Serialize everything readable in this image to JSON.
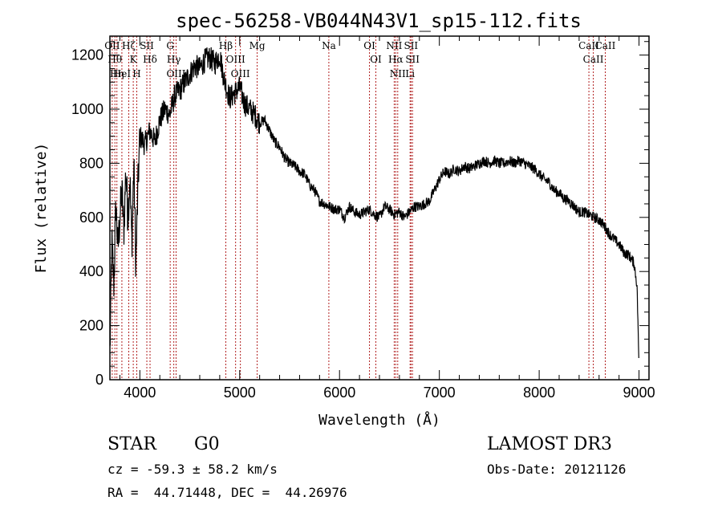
{
  "chart_data": {
    "type": "line",
    "title": "spec-56258-VB044N43V1_sp15-112.fits",
    "xlabel": "Wavelength (Å)",
    "ylabel": "Flux (relative)",
    "xlim": [
      3700,
      9100
    ],
    "ylim": [
      0,
      1270
    ],
    "xticks": [
      4000,
      5000,
      6000,
      7000,
      8000,
      9000
    ],
    "yticks": [
      0,
      200,
      400,
      600,
      800,
      1000,
      1200
    ],
    "grid": false,
    "line_color": "#000000",
    "marker_color": "#b22222",
    "spectrum": {
      "x": [
        3700,
        3720,
        3740,
        3760,
        3780,
        3800,
        3820,
        3840,
        3860,
        3880,
        3900,
        3920,
        3940,
        3960,
        3980,
        4000,
        4050,
        4100,
        4150,
        4200,
        4250,
        4300,
        4350,
        4400,
        4450,
        4500,
        4550,
        4600,
        4650,
        4700,
        4750,
        4800,
        4850,
        4900,
        4950,
        5000,
        5050,
        5100,
        5150,
        5200,
        5250,
        5300,
        5350,
        5400,
        5450,
        5500,
        5550,
        5600,
        5650,
        5700,
        5750,
        5800,
        5850,
        5900,
        5950,
        6000,
        6050,
        6100,
        6150,
        6200,
        6250,
        6300,
        6350,
        6400,
        6450,
        6500,
        6550,
        6600,
        6650,
        6700,
        6750,
        6800,
        6850,
        6900,
        6950,
        7000,
        7050,
        7100,
        7150,
        7200,
        7250,
        7300,
        7350,
        7400,
        7450,
        7500,
        7550,
        7600,
        7650,
        7700,
        7750,
        7800,
        7850,
        7900,
        7950,
        8000,
        8050,
        8100,
        8150,
        8200,
        8250,
        8300,
        8350,
        8400,
        8450,
        8500,
        8550,
        8600,
        8650,
        8700,
        8750,
        8800,
        8850,
        8900,
        8950,
        8980,
        9000
      ],
      "y": [
        100,
        500,
        350,
        650,
        480,
        600,
        700,
        550,
        780,
        600,
        750,
        500,
        800,
        420,
        700,
        900,
        870,
        920,
        880,
        960,
        1000,
        980,
        1050,
        1070,
        1100,
        1130,
        1160,
        1150,
        1180,
        1190,
        1170,
        1200,
        1100,
        1040,
        1060,
        1080,
        1020,
        1000,
        980,
        950,
        960,
        920,
        880,
        860,
        820,
        800,
        790,
        770,
        760,
        720,
        700,
        660,
        650,
        640,
        630,
        630,
        600,
        640,
        620,
        610,
        620,
        630,
        610,
        600,
        640,
        630,
        610,
        620,
        600,
        620,
        640,
        640,
        650,
        660,
        700,
        740,
        770,
        760,
        780,
        770,
        790,
        780,
        790,
        800,
        810,
        800,
        810,
        800,
        800,
        810,
        800,
        810,
        800,
        790,
        780,
        760,
        740,
        730,
        700,
        690,
        670,
        660,
        640,
        620,
        620,
        610,
        600,
        590,
        570,
        540,
        520,
        500,
        470,
        460,
        430,
        350,
        50
      ]
    },
    "lines": [
      {
        "x": 3723,
        "label": "OII"
      },
      {
        "x": 3750,
        "label": "Hθ"
      },
      {
        "x": 3770,
        "label": "Hη"
      },
      {
        "x": 3820,
        "label": "HeI"
      },
      {
        "x": 3889,
        "label": "Hζ"
      },
      {
        "x": 3934,
        "label": "K"
      },
      {
        "x": 3969,
        "label": "H"
      },
      {
        "x": 4070,
        "label": "SII"
      },
      {
        "x": 4102,
        "label": "Hδ"
      },
      {
        "x": 4304,
        "label": "G"
      },
      {
        "x": 4340,
        "label": "Hγ"
      },
      {
        "x": 4363,
        "label": "OIII"
      },
      {
        "x": 4861,
        "label": "Hβ"
      },
      {
        "x": 4959,
        "label": "OIII"
      },
      {
        "x": 5007,
        "label": "OIII"
      },
      {
        "x": 5175,
        "label": "Mg"
      },
      {
        "x": 5893,
        "label": "Na"
      },
      {
        "x": 6300,
        "label": "OI"
      },
      {
        "x": 6364,
        "label": "OI"
      },
      {
        "x": 6548,
        "label": "NII"
      },
      {
        "x": 6563,
        "label": "Hα"
      },
      {
        "x": 6583,
        "label": "NII"
      },
      {
        "x": 6707,
        "label": "Li"
      },
      {
        "x": 6716,
        "label": "SII"
      },
      {
        "x": 6731,
        "label": "SII"
      },
      {
        "x": 8498,
        "label": "CaII"
      },
      {
        "x": 8542,
        "label": "CaII"
      },
      {
        "x": 8662,
        "label": "CaII"
      }
    ]
  },
  "info": {
    "object_class": "STAR",
    "subclass": "G0",
    "cz": "cz = -59.3 ± 58.2 km/s",
    "coords": "RA =  44.71448, DEC =  44.26976",
    "survey": "LAMOST DR3",
    "obs_date": "Obs-Date: 20121126"
  }
}
